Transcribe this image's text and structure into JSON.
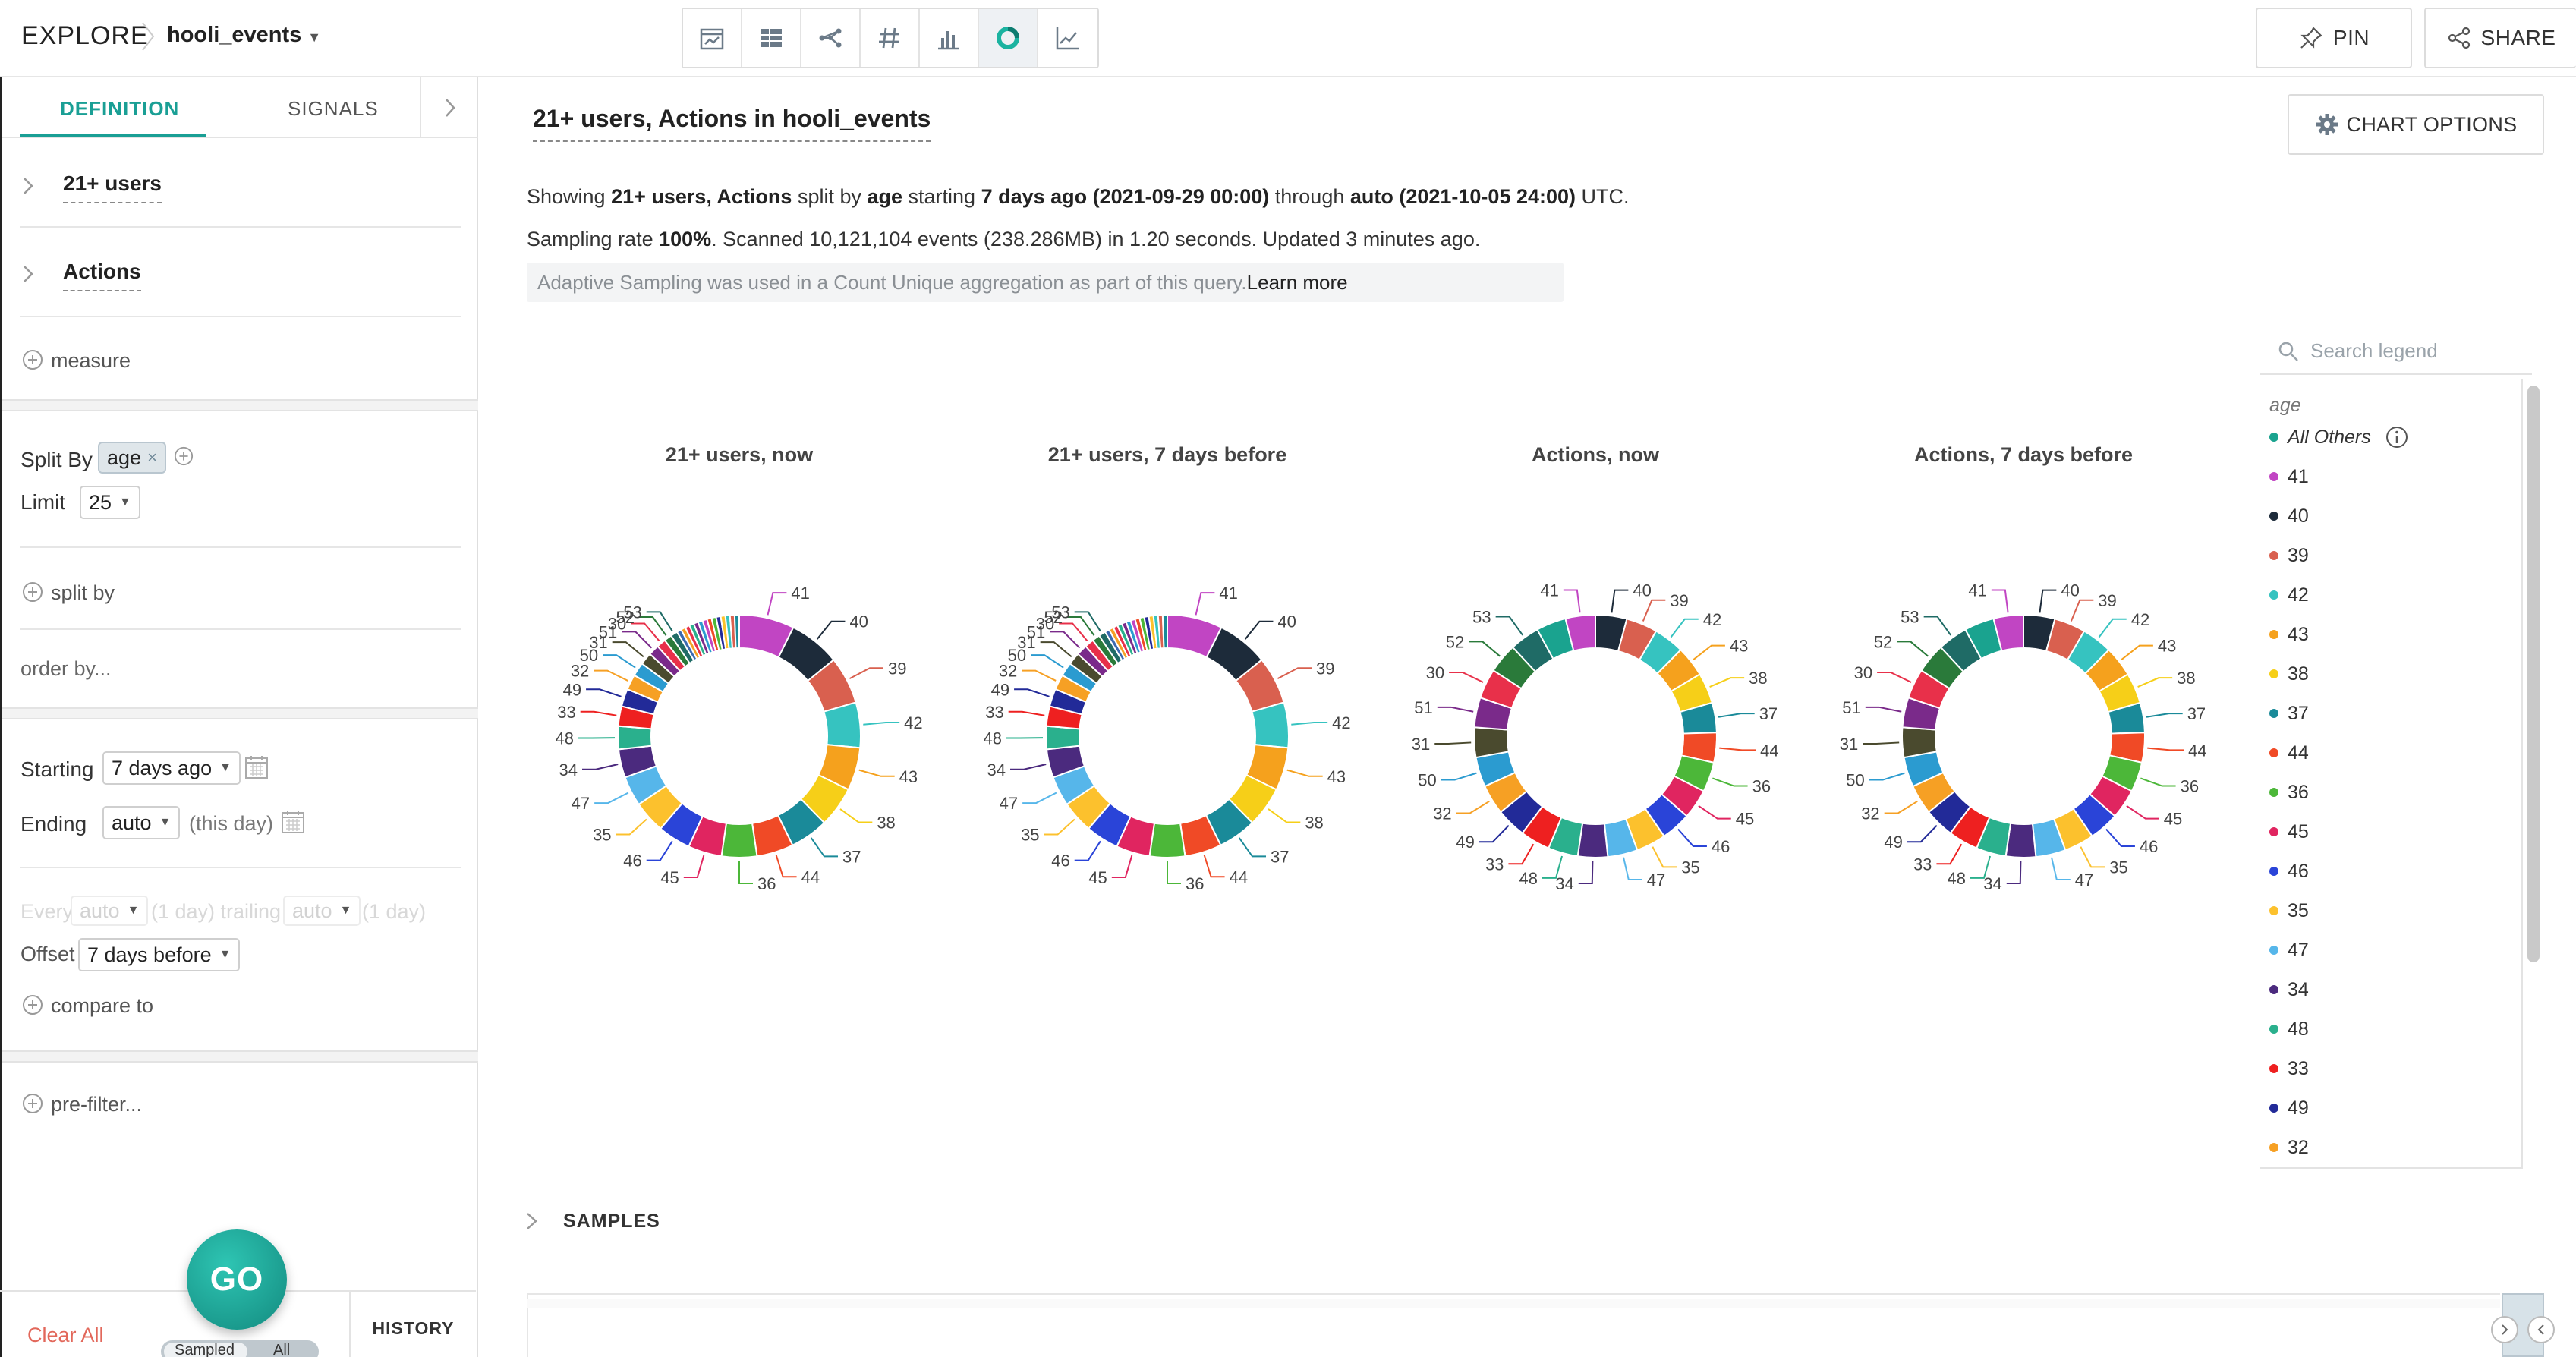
{
  "header": {
    "explore": "EXPLORE",
    "dataset": "hooli_events",
    "pin": "PIN",
    "share": "SHARE"
  },
  "viz_switcher": [
    "calendar-icon",
    "table-icon",
    "flow-icon",
    "number-icon",
    "bar-chart-icon",
    "donut-chart-icon",
    "line-chart-icon"
  ],
  "sidebar": {
    "tabs": {
      "definition": "DEFINITION",
      "signals": "SIGNALS"
    },
    "metrics": [
      "21+ users",
      "Actions"
    ],
    "measure": "measure",
    "split_by_label": "Split By",
    "split_by_value": "age",
    "limit_label": "Limit",
    "limit_value": "25",
    "split_by_add": "split by",
    "order_by": "order by...",
    "starting_label": "Starting",
    "starting_value": "7 days ago",
    "ending_label": "Ending",
    "ending_value": "auto",
    "ending_note": "(this day)",
    "every_label": "Every",
    "every_value": "auto",
    "every_note": "(1 day) trailing",
    "trailing_value": "auto",
    "trailing_note": "(1 day)",
    "offset_label": "Offset",
    "offset_value": "7 days before",
    "compare_to": "compare to",
    "pre_filter": "pre-filter...",
    "go": "GO",
    "clear_all": "Clear All",
    "sampled": "Sampled",
    "all": "All",
    "history": "HISTORY"
  },
  "main": {
    "title": "21+ users, Actions in hooli_events",
    "chart_options": "CHART OPTIONS",
    "line1": {
      "a": "Showing ",
      "b": "21+ users, Actions",
      "c": " split by ",
      "d": "age",
      "e": " starting ",
      "f": "7 days ago (2021-09-29 00:00)",
      "g": " through ",
      "h": "auto (2021-10-05 24:00)",
      "i": " UTC."
    },
    "line2": {
      "a": "Sampling rate ",
      "b": "100%",
      "c": ". Scanned 10,121,104 events (238.286MB) in 1.20 seconds. Updated 3 minutes ago."
    },
    "adaptive_note": "Adaptive Sampling was used in a Count Unique aggregation as part of this query.",
    "learn_more": "Learn more",
    "samples": "SAMPLES"
  },
  "legend": {
    "search_placeholder": "Search legend",
    "heading": "age",
    "items": [
      {
        "label": "All Others",
        "color": "#1aa38f"
      },
      {
        "label": "41",
        "color": "#c145c3"
      },
      {
        "label": "40",
        "color": "#1d2b3a"
      },
      {
        "label": "39",
        "color": "#d9604f"
      },
      {
        "label": "42",
        "color": "#36c3c0"
      },
      {
        "label": "43",
        "color": "#f5a11d"
      },
      {
        "label": "38",
        "color": "#f6cf18"
      },
      {
        "label": "37",
        "color": "#1a8a99"
      },
      {
        "label": "44",
        "color": "#f04a26"
      },
      {
        "label": "36",
        "color": "#4cb739"
      },
      {
        "label": "45",
        "color": "#e02560"
      },
      {
        "label": "46",
        "color": "#2a44d8"
      },
      {
        "label": "35",
        "color": "#fcc12d"
      },
      {
        "label": "47",
        "color": "#56b6ea"
      },
      {
        "label": "34",
        "color": "#4b2a7e"
      },
      {
        "label": "48",
        "color": "#2ab08d"
      },
      {
        "label": "33",
        "color": "#ee2020"
      },
      {
        "label": "49",
        "color": "#222a98"
      },
      {
        "label": "32",
        "color": "#f6a024"
      }
    ]
  },
  "chart_data": [
    {
      "type": "pie",
      "title": "21+ users, now",
      "categories": [
        "41",
        "40",
        "39",
        "42",
        "43",
        "38",
        "37",
        "44",
        "36",
        "45",
        "46",
        "35",
        "47",
        "34",
        "48",
        "33",
        "49",
        "32",
        "50",
        "31",
        "51",
        "30",
        "52",
        "53",
        "All Others"
      ],
      "values": [
        7.2,
        6.7,
        6.2,
        5.9,
        5.6,
        5.3,
        5.0,
        4.8,
        4.6,
        4.4,
        4.3,
        4.2,
        3.9,
        3.7,
        3.0,
        2.6,
        2.3,
        2.0,
        1.8,
        1.6,
        1.4,
        1.2,
        1.0,
        0.9,
        8.4
      ]
    },
    {
      "type": "pie",
      "title": "21+ users, 7 days before",
      "categories": [
        "41",
        "40",
        "39",
        "42",
        "43",
        "38",
        "37",
        "44",
        "36",
        "45",
        "46",
        "35",
        "47",
        "34",
        "48",
        "33",
        "49",
        "32",
        "50",
        "31",
        "51",
        "30",
        "52",
        "53",
        "All Others"
      ],
      "values": [
        7.2,
        6.7,
        6.2,
        5.9,
        5.6,
        5.3,
        5.0,
        4.8,
        4.6,
        4.4,
        4.3,
        4.2,
        3.9,
        3.7,
        3.0,
        2.6,
        2.3,
        2.0,
        1.8,
        1.6,
        1.4,
        1.2,
        1.0,
        0.9,
        8.4
      ]
    },
    {
      "type": "pie",
      "title": "Actions, now",
      "categories": [
        "40",
        "39",
        "42",
        "43",
        "38",
        "37",
        "44",
        "36",
        "45",
        "46",
        "35",
        "47",
        "34",
        "48",
        "33",
        "49",
        "32",
        "50",
        "31",
        "51",
        "30",
        "52",
        "53",
        "All Others",
        "41"
      ],
      "values": [
        4.2,
        4.2,
        4.1,
        4.1,
        4.1,
        4.0,
        4.0,
        4.0,
        4.0,
        4.0,
        4.0,
        4.0,
        4.0,
        4.0,
        4.0,
        4.0,
        4.0,
        4.0,
        4.0,
        4.0,
        4.0,
        4.0,
        4.0,
        4.0,
        4.0
      ]
    },
    {
      "type": "pie",
      "title": "Actions, 7 days before",
      "categories": [
        "40",
        "39",
        "42",
        "43",
        "38",
        "37",
        "44",
        "36",
        "45",
        "46",
        "35",
        "47",
        "34",
        "48",
        "33",
        "49",
        "32",
        "50",
        "31",
        "51",
        "30",
        "52",
        "53",
        "All Others",
        "41"
      ],
      "values": [
        4.2,
        4.2,
        4.1,
        4.1,
        4.1,
        4.0,
        4.0,
        4.0,
        4.0,
        4.0,
        4.0,
        4.0,
        4.0,
        4.0,
        4.0,
        4.0,
        4.0,
        4.0,
        4.0,
        4.0,
        4.0,
        4.0,
        4.0,
        4.0,
        4.0
      ]
    }
  ]
}
